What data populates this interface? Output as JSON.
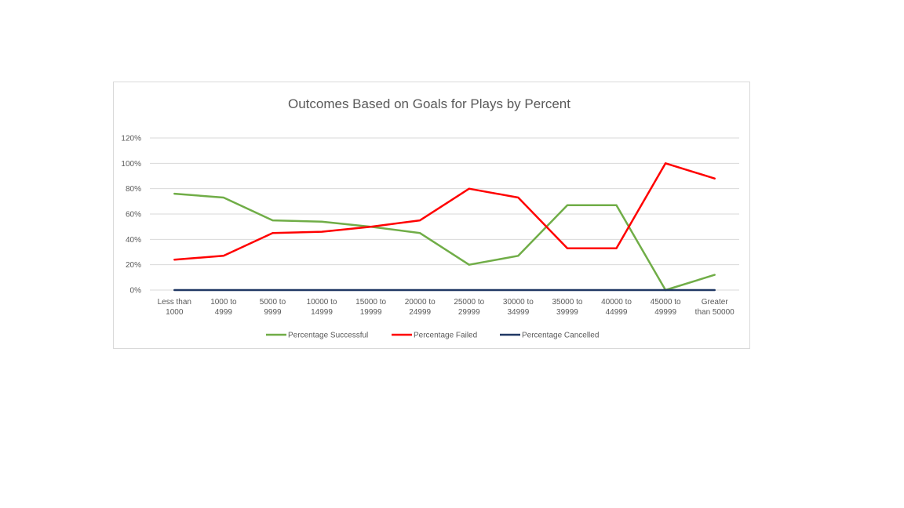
{
  "chart_data": {
    "type": "line",
    "title": "Outcomes Based on Goals for Plays by Percent",
    "xlabel": "",
    "ylabel": "",
    "categories": [
      [
        "Less than",
        "1000"
      ],
      [
        "1000 to",
        "4999"
      ],
      [
        "5000 to",
        "9999"
      ],
      [
        "10000 to",
        "14999"
      ],
      [
        "15000 to",
        "19999"
      ],
      [
        "20000 to",
        "24999"
      ],
      [
        "25000 to",
        "29999"
      ],
      [
        "30000 to",
        "34999"
      ],
      [
        "35000 to",
        "39999"
      ],
      [
        "40000 to",
        "44999"
      ],
      [
        "45000 to",
        "49999"
      ],
      [
        "Greater",
        "than 50000"
      ]
    ],
    "ylim": [
      0,
      1.2
    ],
    "yticks": [
      0,
      0.2,
      0.4,
      0.6,
      0.8,
      1.0,
      1.2
    ],
    "ytick_labels": [
      "0%",
      "20%",
      "40%",
      "60%",
      "80%",
      "100%",
      "120%"
    ],
    "grid": true,
    "legend_position": "bottom",
    "series": [
      {
        "name": "Percentage Successful",
        "color": "#70ad47",
        "values": [
          0.76,
          0.73,
          0.55,
          0.54,
          0.5,
          0.45,
          0.2,
          0.27,
          0.67,
          0.67,
          0.0,
          0.12
        ]
      },
      {
        "name": "Percentage Failed",
        "color": "#ff0000",
        "values": [
          0.24,
          0.27,
          0.45,
          0.46,
          0.5,
          0.55,
          0.8,
          0.73,
          0.33,
          0.33,
          1.0,
          0.88
        ]
      },
      {
        "name": "Percentage Cancelled",
        "color": "#203864",
        "values": [
          0,
          0,
          0,
          0,
          0,
          0,
          0,
          0,
          0,
          0,
          0,
          0
        ]
      }
    ]
  }
}
